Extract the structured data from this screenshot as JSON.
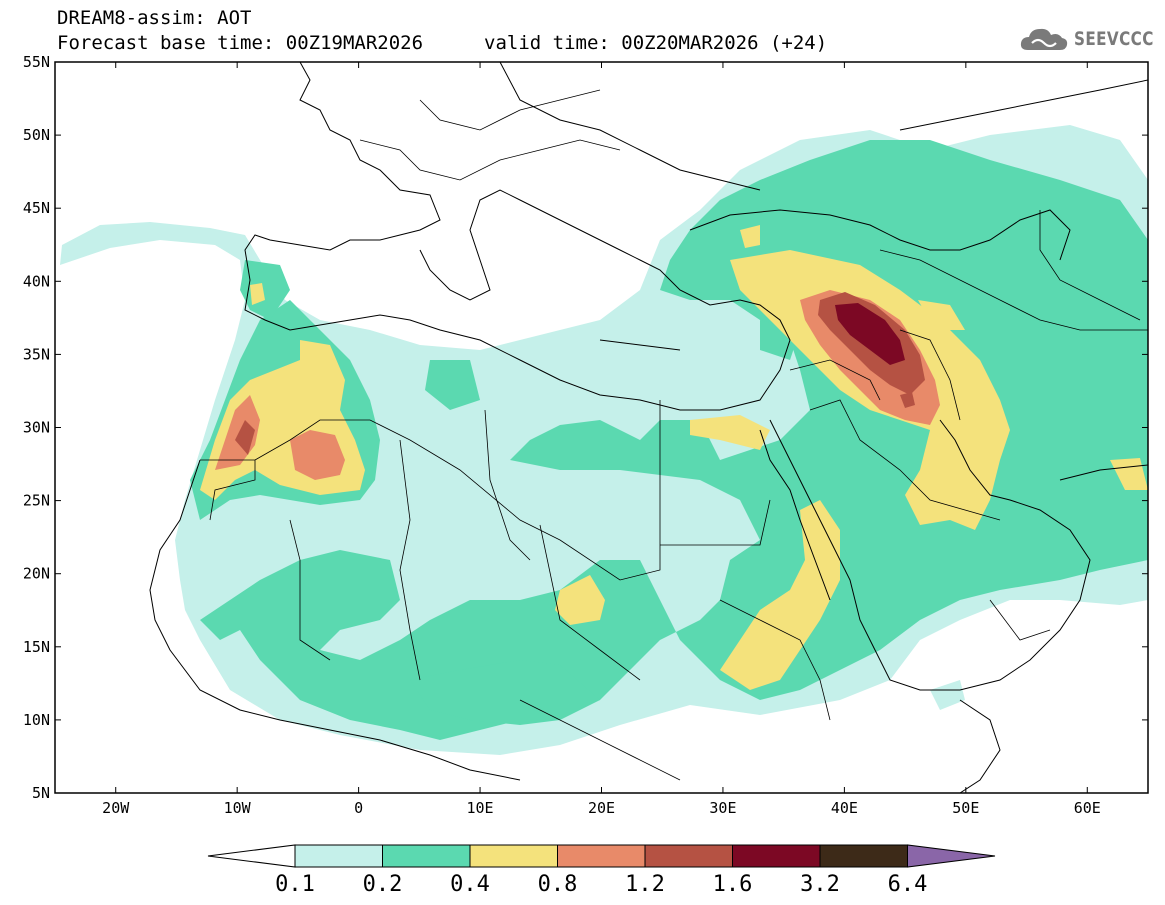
{
  "header": {
    "title": "DREAM8-assim: AOT",
    "base_time": "Forecast base time: 00Z19MAR2026",
    "valid_time": "valid time: 00Z20MAR2026 (+24)"
  },
  "logo": {
    "text": "SEEVCCC",
    "icon": "cloud-logo-icon"
  },
  "map": {
    "x_ticks": [
      "20W",
      "10W",
      "0",
      "10E",
      "20E",
      "30E",
      "40E",
      "50E",
      "60E"
    ],
    "y_ticks": [
      "55N",
      "50N",
      "45N",
      "40N",
      "35N",
      "30N",
      "25N",
      "20N",
      "15N",
      "10N",
      "5N"
    ],
    "lon_range": [
      -25,
      65
    ],
    "lat_range": [
      5,
      55
    ]
  },
  "colorbar": {
    "labels": [
      "0.1",
      "0.2",
      "0.4",
      "0.8",
      "1.2",
      "1.6",
      "3.2",
      "6.4"
    ],
    "colors": [
      "#ffffff",
      "#c5f0ea",
      "#5bd9b0",
      "#f4e27c",
      "#e88a69",
      "#b55243",
      "#7c0824",
      "#3d2a18",
      "#8a66a8"
    ]
  }
}
